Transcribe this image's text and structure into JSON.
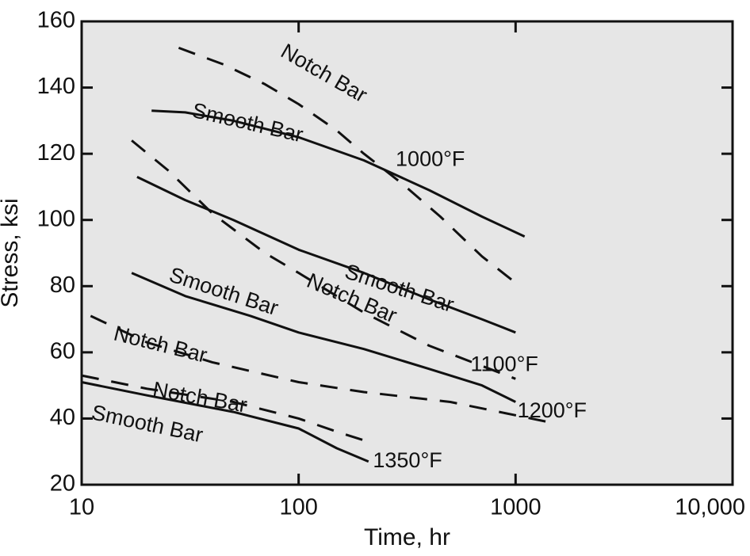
{
  "chart_data": {
    "type": "line",
    "title": "",
    "xlabel": "Time, hr",
    "ylabel": "Stress, ksi",
    "xscale": "log",
    "xlim": [
      10,
      10000
    ],
    "ylim": [
      20,
      160
    ],
    "xticks": [
      10,
      100,
      1000,
      10000
    ],
    "xtick_labels": [
      "10",
      "100",
      "1000",
      "10,000"
    ],
    "yticks": [
      20,
      40,
      60,
      80,
      100,
      120,
      140,
      160
    ],
    "ytick_labels": [
      "20",
      "40",
      "60",
      "80",
      "100",
      "120",
      "140",
      "160"
    ],
    "grid": false,
    "background": "#e6e6e6",
    "series": [
      {
        "group": "1000°F",
        "kind": "Notch Bar",
        "style": "dashed",
        "x": [
          28,
          45,
          70,
          100,
          150,
          200,
          300,
          450,
          700,
          1000
        ],
        "y": [
          152,
          147,
          141,
          135,
          127,
          120,
          111,
          101,
          89,
          81
        ]
      },
      {
        "group": "1000°F",
        "kind": "Smooth Bar",
        "style": "solid",
        "x": [
          21,
          30,
          50,
          100,
          200,
          400,
          700,
          1100
        ],
        "y": [
          133,
          132.5,
          130,
          125,
          118,
          109,
          101,
          95
        ]
      },
      {
        "group": "1100°F",
        "kind": "Notch Bar",
        "style": "dashed",
        "x": [
          17,
          25,
          40,
          70,
          100,
          200,
          400,
          1000
        ],
        "y": [
          124,
          115,
          102,
          90,
          84,
          72,
          62,
          52
        ]
      },
      {
        "group": "1100°F",
        "kind": "Smooth Bar",
        "style": "solid",
        "x": [
          18,
          30,
          50,
          100,
          200,
          400,
          700,
          1000
        ],
        "y": [
          113,
          106,
          100,
          91,
          84,
          76,
          70,
          66
        ]
      },
      {
        "group": "1200°F",
        "kind": "Notch Bar",
        "style": "dashed",
        "x": [
          11,
          20,
          40,
          100,
          200,
          500,
          1000,
          1400
        ],
        "y": [
          71,
          63,
          57,
          51,
          48,
          45,
          41,
          39
        ]
      },
      {
        "group": "1200°F",
        "kind": "Smooth Bar",
        "style": "solid",
        "x": [
          17,
          30,
          60,
          100,
          200,
          400,
          700,
          1000
        ],
        "y": [
          84,
          77,
          71,
          66,
          61,
          55,
          50,
          45
        ]
      },
      {
        "group": "1350°F",
        "kind": "Notch Bar",
        "style": "dashed",
        "x": [
          10,
          20,
          50,
          100,
          150,
          210
        ],
        "y": [
          53,
          49,
          45,
          40,
          36,
          33
        ]
      },
      {
        "group": "1350°F",
        "kind": "Smooth Bar",
        "style": "solid",
        "x": [
          10,
          20,
          50,
          100,
          150,
          210
        ],
        "y": [
          51,
          47,
          42,
          37,
          31,
          27
        ]
      }
    ],
    "annotations": [
      {
        "text": "Notch Bar",
        "x": 130,
        "y": 144,
        "angle": 30
      },
      {
        "text": "Smooth Bar",
        "x": 58,
        "y": 129,
        "angle": 13
      },
      {
        "text": "1000°F",
        "x": 280,
        "y": 118,
        "angle": 0
      },
      {
        "text": "Smooth Bar",
        "x": 290,
        "y": 79,
        "angle": 18
      },
      {
        "text": "Notch Bar",
        "x": 175,
        "y": 76,
        "angle": 23
      },
      {
        "text": "1100°F",
        "x": 620,
        "y": 56,
        "angle": 0
      },
      {
        "text": "Smooth Bar",
        "x": 45,
        "y": 78,
        "angle": 18
      },
      {
        "text": "Notch Bar",
        "x": 23,
        "y": 62,
        "angle": 14
      },
      {
        "text": "1200°F",
        "x": 1020,
        "y": 42,
        "angle": 0
      },
      {
        "text": "Notch Bar",
        "x": 35,
        "y": 46,
        "angle": 10
      },
      {
        "text": "Smooth Bar",
        "x": 20,
        "y": 38,
        "angle": 12
      },
      {
        "text": "1350°F",
        "x": 220,
        "y": 27,
        "angle": 0
      }
    ]
  }
}
